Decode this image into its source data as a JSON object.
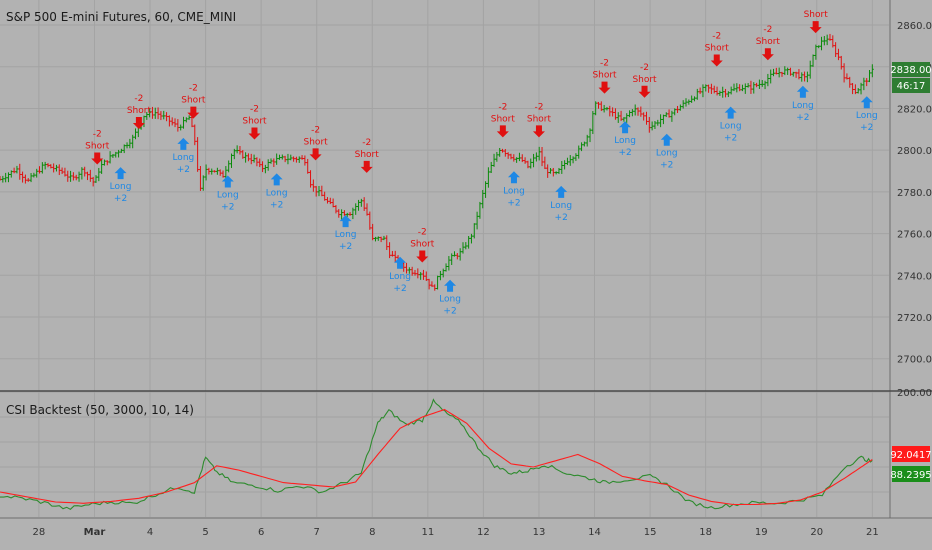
{
  "header": {
    "symbol_title": "S&P 500 E-mini Futures, 60, CME_MINI",
    "indicator_title": "CSI Backtest (50, 3000, 10, 14)"
  },
  "price_badge": {
    "value": "2838.00",
    "countdown": "46:17",
    "color": "#2e7d32"
  },
  "indicator_badges": [
    {
      "value": "92.0417",
      "color": "#ff1a1a"
    },
    {
      "value": "88.2395",
      "color": "#1b8e1b"
    }
  ],
  "colors": {
    "background": "#b2b2b2",
    "grid": "#a3a3a3",
    "up_bar": "#0a8a0a",
    "down_bar": "#e01010",
    "short_signal": "#e01010",
    "long_signal": "#1e88e5",
    "csi_line": "#2e8b2e",
    "signal_line": "#ff2020"
  },
  "chart_data": [
    {
      "type": "ohlc",
      "title": "S&P 500 E-mini Futures, 60, CME_MINI",
      "ylim": [
        2685,
        2872
      ],
      "y_ticks": [
        "2700.00",
        "2720.00",
        "2740.00",
        "2760.00",
        "2780.00",
        "2800.00",
        "2820.00",
        "2840.00",
        "2860.00"
      ],
      "x_tick_labels": [
        "28",
        "Mar",
        "4",
        "5",
        "6",
        "7",
        "8",
        "11",
        "12",
        "13",
        "14",
        "15",
        "18",
        "19",
        "20",
        "21"
      ],
      "x_range": [
        0,
        16
      ],
      "x_ticks": [
        0.7,
        1.7,
        2.7,
        3.7,
        4.7,
        5.7,
        6.7,
        7.7,
        8.7,
        9.7,
        10.7,
        11.7,
        12.7,
        13.7,
        14.7,
        15.7
      ],
      "price_path": [
        [
          0.0,
          2786
        ],
        [
          0.3,
          2791
        ],
        [
          0.5,
          2785
        ],
        [
          0.8,
          2793
        ],
        [
          1.1,
          2790
        ],
        [
          1.3,
          2786
        ],
        [
          1.5,
          2791
        ],
        [
          1.7,
          2784
        ],
        [
          1.8,
          2792
        ],
        [
          2.0,
          2797
        ],
        [
          2.2,
          2801
        ],
        [
          2.4,
          2806
        ],
        [
          2.6,
          2817
        ],
        [
          2.8,
          2818
        ],
        [
          3.0,
          2815
        ],
        [
          3.2,
          2811
        ],
        [
          3.3,
          2813
        ],
        [
          3.4,
          2816
        ],
        [
          3.5,
          2806
        ],
        [
          3.6,
          2780
        ],
        [
          3.7,
          2791
        ],
        [
          3.9,
          2790
        ],
        [
          4.0,
          2787
        ],
        [
          4.2,
          2800
        ],
        [
          4.4,
          2797
        ],
        [
          4.6,
          2795
        ],
        [
          4.7,
          2791
        ],
        [
          4.9,
          2795
        ],
        [
          5.1,
          2796
        ],
        [
          5.4,
          2796
        ],
        [
          5.5,
          2795
        ],
        [
          5.6,
          2783
        ],
        [
          5.8,
          2778
        ],
        [
          5.9,
          2775
        ],
        [
          6.1,
          2770
        ],
        [
          6.3,
          2770
        ],
        [
          6.5,
          2776
        ],
        [
          6.6,
          2770
        ],
        [
          6.7,
          2757
        ],
        [
          6.9,
          2758
        ],
        [
          7.0,
          2751
        ],
        [
          7.2,
          2745
        ],
        [
          7.4,
          2742
        ],
        [
          7.6,
          2741
        ],
        [
          7.8,
          2733
        ],
        [
          7.9,
          2740
        ],
        [
          8.1,
          2748
        ],
        [
          8.3,
          2751
        ],
        [
          8.5,
          2760
        ],
        [
          8.6,
          2770
        ],
        [
          8.8,
          2790
        ],
        [
          9.0,
          2801
        ],
        [
          9.2,
          2797
        ],
        [
          9.4,
          2795
        ],
        [
          9.5,
          2792
        ],
        [
          9.7,
          2799
        ],
        [
          9.8,
          2791
        ],
        [
          10.0,
          2788
        ],
        [
          10.2,
          2795
        ],
        [
          10.4,
          2799
        ],
        [
          10.6,
          2808
        ],
        [
          10.7,
          2822
        ],
        [
          11.0,
          2818
        ],
        [
          11.2,
          2814
        ],
        [
          11.4,
          2820
        ],
        [
          11.6,
          2816
        ],
        [
          11.7,
          2811
        ],
        [
          11.9,
          2815
        ],
        [
          12.1,
          2818
        ],
        [
          12.3,
          2822
        ],
        [
          12.5,
          2826
        ],
        [
          12.7,
          2830
        ],
        [
          12.9,
          2828
        ],
        [
          13.1,
          2828
        ],
        [
          13.3,
          2830
        ],
        [
          13.5,
          2830
        ],
        [
          13.7,
          2832
        ],
        [
          13.9,
          2836
        ],
        [
          14.1,
          2838
        ],
        [
          14.3,
          2837
        ],
        [
          14.5,
          2834
        ],
        [
          14.7,
          2850
        ],
        [
          14.9,
          2854
        ],
        [
          15.1,
          2844
        ],
        [
          15.2,
          2835
        ],
        [
          15.4,
          2828
        ],
        [
          15.6,
          2834
        ],
        [
          15.7,
          2838
        ]
      ],
      "signals": [
        {
          "side": "short",
          "label": "Short",
          "qty": "-2",
          "x": 1.75,
          "price": 2796
        },
        {
          "side": "long",
          "label": "Long",
          "qty": "+2",
          "x": 2.17,
          "price": 2789
        },
        {
          "side": "short",
          "label": "Short",
          "qty": "-2",
          "x": 2.5,
          "price": 2813
        },
        {
          "side": "long",
          "label": "Long",
          "qty": "+2",
          "x": 3.3,
          "price": 2803
        },
        {
          "side": "short",
          "label": "Short",
          "qty": "-2",
          "x": 3.48,
          "price": 2818
        },
        {
          "side": "long",
          "label": "Long",
          "qty": "+2",
          "x": 4.1,
          "price": 2785
        },
        {
          "side": "short",
          "label": "Short",
          "qty": "-2",
          "x": 4.58,
          "price": 2808
        },
        {
          "side": "long",
          "label": "Long",
          "qty": "+2",
          "x": 4.98,
          "price": 2786
        },
        {
          "side": "short",
          "label": "Short",
          "qty": "-2",
          "x": 5.68,
          "price": 2798
        },
        {
          "side": "long",
          "label": "Long",
          "qty": "+2",
          "x": 6.22,
          "price": 2766
        },
        {
          "side": "short",
          "label": "Short",
          "qty": "-2",
          "x": 6.6,
          "price": 2792
        },
        {
          "side": "long",
          "label": "Long",
          "qty": "+2",
          "x": 7.2,
          "price": 2746
        },
        {
          "side": "short",
          "label": "Short",
          "qty": "-2",
          "x": 7.6,
          "price": 2749
        },
        {
          "side": "long",
          "label": "Long",
          "qty": "+2",
          "x": 8.1,
          "price": 2735
        },
        {
          "side": "short",
          "label": "Short",
          "qty": "-2",
          "x": 9.05,
          "price": 2809
        },
        {
          "side": "long",
          "label": "Long",
          "qty": "+2",
          "x": 9.25,
          "price": 2787
        },
        {
          "side": "short",
          "label": "Short",
          "qty": "-2",
          "x": 9.7,
          "price": 2809
        },
        {
          "side": "long",
          "label": "Long",
          "qty": "+2",
          "x": 10.1,
          "price": 2780
        },
        {
          "side": "short",
          "label": "Short",
          "qty": "-2",
          "x": 10.88,
          "price": 2830
        },
        {
          "side": "long",
          "label": "Long",
          "qty": "+2",
          "x": 11.25,
          "price": 2811
        },
        {
          "side": "short",
          "label": "Short",
          "qty": "-2",
          "x": 11.6,
          "price": 2828
        },
        {
          "side": "long",
          "label": "Long",
          "qty": "+2",
          "x": 12.0,
          "price": 2805
        },
        {
          "side": "short",
          "label": "Short",
          "qty": "-2",
          "x": 12.9,
          "price": 2843
        },
        {
          "side": "long",
          "label": "Long",
          "qty": "+2",
          "x": 13.15,
          "price": 2818
        },
        {
          "side": "short",
          "label": "Short",
          "qty": "-2",
          "x": 13.82,
          "price": 2846
        },
        {
          "side": "long",
          "label": "Long",
          "qty": "+2",
          "x": 14.45,
          "price": 2828
        },
        {
          "side": "short",
          "label": "Short",
          "qty": "",
          "x": 14.68,
          "price": 2859
        },
        {
          "side": "long",
          "label": "Long",
          "qty": "+2",
          "x": 15.6,
          "price": 2823
        }
      ]
    },
    {
      "type": "line",
      "title": "CSI Backtest (50, 3000, 10, 14)",
      "ylim": [
        0,
        200
      ],
      "y_ticks": [
        "200.0000"
      ],
      "x_range": [
        0,
        16
      ],
      "series": [
        {
          "role": "csi",
          "color": "#2e8b2e",
          "points": [
            [
              0.0,
              34
            ],
            [
              0.4,
              30
            ],
            [
              0.8,
              23
            ],
            [
              1.2,
              13
            ],
            [
              1.6,
              20
            ],
            [
              2.0,
              24
            ],
            [
              2.4,
              22
            ],
            [
              2.8,
              36
            ],
            [
              3.2,
              48
            ],
            [
              3.5,
              40
            ],
            [
              3.7,
              95
            ],
            [
              3.9,
              72
            ],
            [
              4.2,
              55
            ],
            [
              4.6,
              50
            ],
            [
              5.0,
              42
            ],
            [
              5.4,
              50
            ],
            [
              5.8,
              40
            ],
            [
              6.2,
              55
            ],
            [
              6.5,
              70
            ],
            [
              6.8,
              150
            ],
            [
              7.0,
              170
            ],
            [
              7.3,
              148
            ],
            [
              7.6,
              155
            ],
            [
              7.8,
              185
            ],
            [
              8.0,
              168
            ],
            [
              8.3,
              150
            ],
            [
              8.6,
              112
            ],
            [
              8.9,
              82
            ],
            [
              9.2,
              70
            ],
            [
              9.5,
              74
            ],
            [
              9.8,
              84
            ],
            [
              10.2,
              70
            ],
            [
              10.6,
              62
            ],
            [
              10.9,
              55
            ],
            [
              11.3,
              60
            ],
            [
              11.7,
              65
            ],
            [
              12.0,
              52
            ],
            [
              12.4,
              24
            ],
            [
              12.8,
              15
            ],
            [
              13.2,
              20
            ],
            [
              13.6,
              23
            ],
            [
              14.0,
              22
            ],
            [
              14.4,
              27
            ],
            [
              14.8,
              35
            ],
            [
              15.2,
              80
            ],
            [
              15.5,
              95
            ],
            [
              15.7,
              88
            ]
          ]
        },
        {
          "role": "signal",
          "color": "#ff2020",
          "points": [
            [
              0.0,
              40
            ],
            [
              0.5,
              32
            ],
            [
              1.0,
              24
            ],
            [
              1.5,
              22
            ],
            [
              2.0,
              25
            ],
            [
              2.5,
              30
            ],
            [
              3.0,
              40
            ],
            [
              3.5,
              55
            ],
            [
              3.9,
              82
            ],
            [
              4.3,
              75
            ],
            [
              4.7,
              65
            ],
            [
              5.1,
              55
            ],
            [
              5.5,
              52
            ],
            [
              6.0,
              48
            ],
            [
              6.4,
              56
            ],
            [
              6.8,
              100
            ],
            [
              7.2,
              142
            ],
            [
              7.6,
              160
            ],
            [
              8.0,
              172
            ],
            [
              8.4,
              150
            ],
            [
              8.8,
              110
            ],
            [
              9.2,
              85
            ],
            [
              9.6,
              80
            ],
            [
              10.0,
              90
            ],
            [
              10.4,
              100
            ],
            [
              10.8,
              85
            ],
            [
              11.2,
              65
            ],
            [
              11.6,
              58
            ],
            [
              12.0,
              52
            ],
            [
              12.4,
              35
            ],
            [
              12.8,
              25
            ],
            [
              13.2,
              20
            ],
            [
              13.6,
              20
            ],
            [
              14.0,
              22
            ],
            [
              14.4,
              27
            ],
            [
              14.8,
              40
            ],
            [
              15.2,
              62
            ],
            [
              15.5,
              80
            ],
            [
              15.7,
              92
            ]
          ]
        }
      ]
    }
  ]
}
